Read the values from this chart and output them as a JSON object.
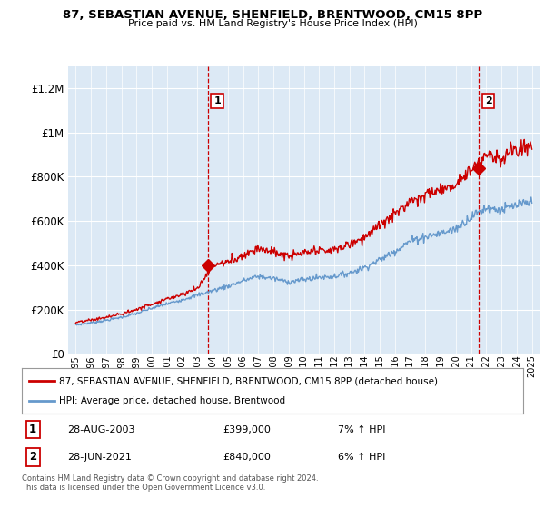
{
  "title": "87, SEBASTIAN AVENUE, SHENFIELD, BRENTWOOD, CM15 8PP",
  "subtitle": "Price paid vs. HM Land Registry's House Price Index (HPI)",
  "background_color": "#ffffff",
  "plot_bg_color": "#dce9f5",
  "grid_color": "#ffffff",
  "house_line_color": "#cc0000",
  "hpi_line_color": "#6699cc",
  "sale1_date_idx": 8.67,
  "sale1_value": 399000,
  "sale2_date_idx": 26.5,
  "sale2_value": 840000,
  "legend_house_label": "87, SEBASTIAN AVENUE, SHENFIELD, BRENTWOOD, CM15 8PP (detached house)",
  "legend_hpi_label": "HPI: Average price, detached house, Brentwood",
  "annotation1_date": "28-AUG-2003",
  "annotation1_price": "£399,000",
  "annotation1_hpi": "7% ↑ HPI",
  "annotation2_date": "28-JUN-2021",
  "annotation2_price": "£840,000",
  "annotation2_hpi": "6% ↑ HPI",
  "footer": "Contains HM Land Registry data © Crown copyright and database right 2024.\nThis data is licensed under the Open Government Licence v3.0.",
  "ylim": [
    0,
    1300000
  ],
  "yticks": [
    0,
    200000,
    400000,
    600000,
    800000,
    1000000,
    1200000
  ],
  "years": [
    1995,
    1996,
    1997,
    1998,
    1999,
    2000,
    2001,
    2002,
    2003,
    2004,
    2005,
    2006,
    2007,
    2008,
    2009,
    2010,
    2011,
    2012,
    2013,
    2014,
    2015,
    2016,
    2017,
    2018,
    2019,
    2020,
    2021,
    2022,
    2023,
    2024,
    2025
  ],
  "hpi_base_values": [
    130000,
    140000,
    151000,
    165000,
    182000,
    205000,
    225000,
    245000,
    265000,
    285000,
    305000,
    330000,
    350000,
    340000,
    325000,
    335000,
    345000,
    350000,
    365000,
    390000,
    425000,
    465000,
    510000,
    530000,
    545000,
    565000,
    620000,
    660000,
    650000,
    670000,
    685000
  ],
  "house_base_values": [
    140000,
    152000,
    164000,
    180000,
    200000,
    225000,
    248000,
    270000,
    295000,
    399000,
    415000,
    445000,
    480000,
    460000,
    440000,
    455000,
    465000,
    470000,
    495000,
    530000,
    580000,
    630000,
    695000,
    720000,
    740000,
    770000,
    840000,
    900000,
    885000,
    920000,
    940000
  ],
  "noise_scale_hpi": 0.018,
  "noise_scale_house": 0.022
}
